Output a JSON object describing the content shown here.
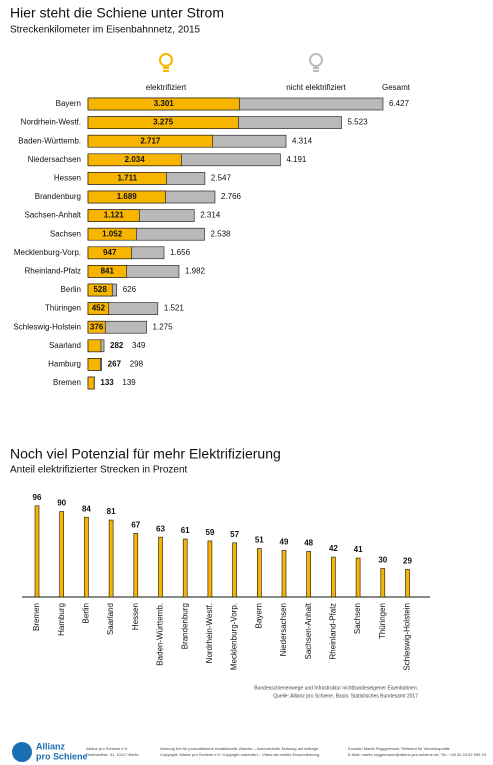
{
  "chart_data": [
    {
      "type": "overlap-barh",
      "title": "Hier steht die Schiene unter Strom",
      "subtitle": "Streckenkilometer im Eisenbahnnetz, 2015",
      "legend_labels": [
        "elektrifiziert",
        "nicht elektrifiziert",
        "Gesamt"
      ],
      "categories": [
        "Bayern",
        "Nordrhein-Westf.",
        "Baden-Württemb.",
        "Niedersachsen",
        "Hessen",
        "Brandenburg",
        "Sachsen-Anhalt",
        "Sachsen",
        "Mecklenburg-Vorp.",
        "Rheinland-Pfalz",
        "Berlin",
        "Thüringen",
        "Schleswig-Holstein",
        "Saarland",
        "Hamburg",
        "Bremen"
      ],
      "series": [
        {
          "name": "elektrifiziert",
          "color": "#f7b500",
          "values": [
            3301,
            3275,
            2717,
            2034,
            1711,
            1689,
            1121,
            1052,
            947,
            841,
            528,
            452,
            376,
            282,
            267,
            133
          ],
          "value_labels": [
            "3.301",
            "3.275",
            "2.717",
            "2.034",
            "1.711",
            "1.689",
            "1.121",
            "1.052",
            "947",
            "841",
            "528",
            "452",
            "376",
            "282",
            "267",
            "133"
          ]
        },
        {
          "name": "Gesamt",
          "color": "#b9b9b9",
          "values": [
            6427,
            5523,
            4314,
            4191,
            2547,
            2766,
            2314,
            2538,
            1656,
            1982,
            626,
            1521,
            1275,
            349,
            298,
            139
          ],
          "value_labels": [
            "6.427",
            "5.523",
            "4.314",
            "4.191",
            "2.547",
            "2.766",
            "2.314",
            "2.538",
            "1.656",
            "1.982",
            "626",
            "1.521",
            "1.275",
            "349",
            "298",
            "139"
          ]
        }
      ]
    },
    {
      "type": "bar",
      "title": "Noch viel Potenzial für mehr Elektrifizierung",
      "subtitle": "Anteil elektrifizierter Strecken in Prozent",
      "categories": [
        "Bremen",
        "Hamburg",
        "Berlin",
        "Saarland",
        "Hessen",
        "Baden-Württemb.",
        "Brandenburg",
        "Nordrhein-Westf.",
        "Mecklenburg-Vorp.",
        "Bayern",
        "Niedersachsen",
        "Sachsen-Anhalt",
        "Rheinland-Pfalz",
        "Sachsen",
        "Thüringen",
        "Schleswig-Holstein"
      ],
      "values": [
        96,
        90,
        84,
        81,
        67,
        63,
        61,
        59,
        57,
        51,
        49,
        48,
        42,
        41,
        30,
        29
      ],
      "color": "#f7b500"
    }
  ],
  "source": [
    "Bundesschienenwege und Infrastruktur nichtbundeseigener Eisenbahnen.",
    "Quelle: Allianz pro Schiene, Basis: Statistisches Bundesamt 2017"
  ],
  "footer": {
    "logo": [
      "Allianz",
      "pro Schiene"
    ],
    "columns": [
      [
        "Allianz pro Schiene e.V.",
        "Reinhardtstr. 31, 10117 Berlin"
      ],
      [
        "Nutzung frei für journalistische redaktionelle Zwecke – kommerzielle Nutzung auf Anfrage.",
        "Copyright: Allianz pro Schiene e.V. Copyright unberührt – Video als mobile Einschränkung."
      ],
      [
        "Kontakt: Martin Roggermann, Referent für Verkehrspolitik",
        "E-Mail: martin.roggermann@allianz-pro-schiene.de, Tel.: +49 30 24 62 599 23"
      ]
    ]
  }
}
